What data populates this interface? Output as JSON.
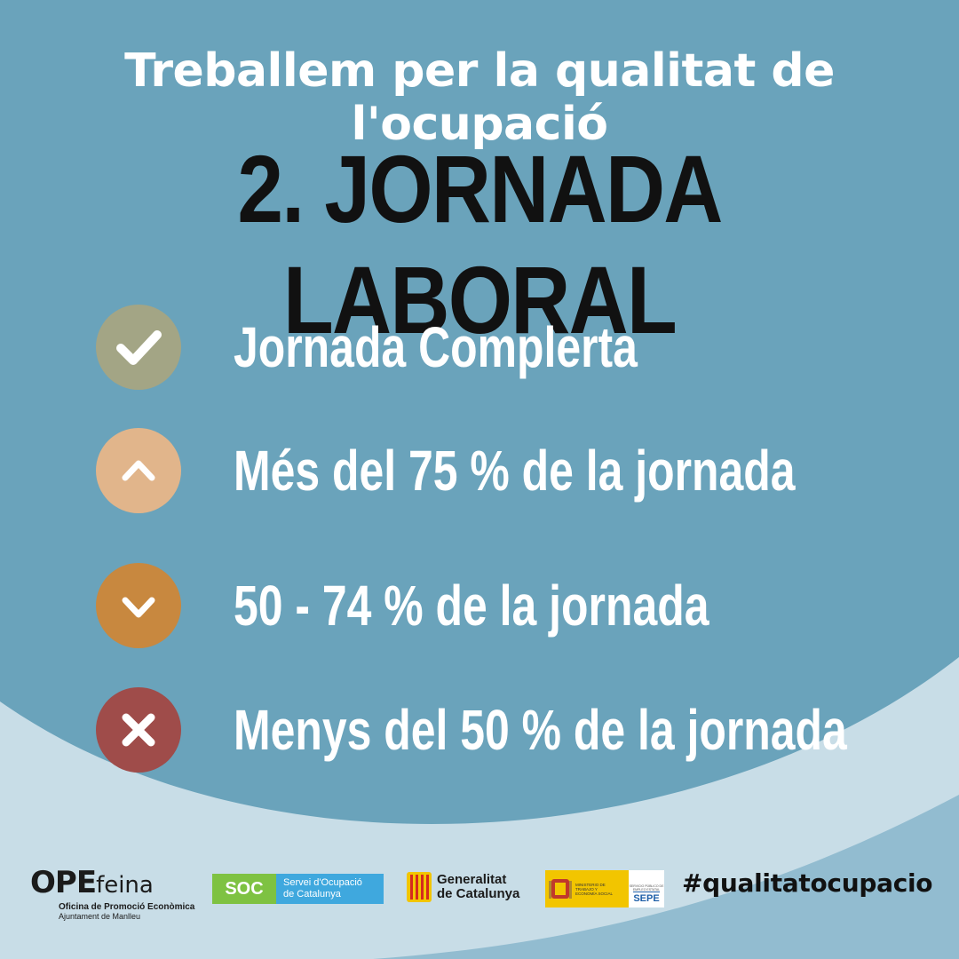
{
  "colors": {
    "background": "#6aa3bb",
    "wave_light": "#c8dde7",
    "wave_mid": "#92bcd0",
    "check": "#a3a585",
    "up": "#e1b58b",
    "down": "#c8883f",
    "cross": "#9f4c4a"
  },
  "header": {
    "subtitle": "Treballem per la qualitat de l'ocupació",
    "title": "2. JORNADA LABORAL"
  },
  "options": [
    {
      "icon": "checkmark-icon",
      "label": "Jornada Complerta"
    },
    {
      "icon": "chevron-up-icon",
      "label": "Més del 75 % de la jornada"
    },
    {
      "icon": "chevron-down-icon",
      "label": "50 - 74 % de la jornada"
    },
    {
      "icon": "cross-icon",
      "label": "Menys del 50 % de la jornada"
    }
  ],
  "footer": {
    "ope": {
      "mark": "OPE",
      "feina": "feina",
      "line1": "Oficina de Promoció Econòmica",
      "line2": "Ajuntament de Manlleu"
    },
    "soc": {
      "badge": "SOC",
      "line1": "Servei d'Ocupació",
      "line2": "de Catalunya"
    },
    "generalitat": {
      "line1": "Generalitat",
      "line2": "de Catalunya"
    },
    "sepe": {
      "ministry": "MINISTERIO DE TRABAJO Y ECONOMÍA SOCIAL",
      "service": "SERVICIO PÚBLICO DE EMPLEO ESTATAL",
      "word": "SEPE"
    },
    "hashtag": "#qualitatocupacio"
  }
}
